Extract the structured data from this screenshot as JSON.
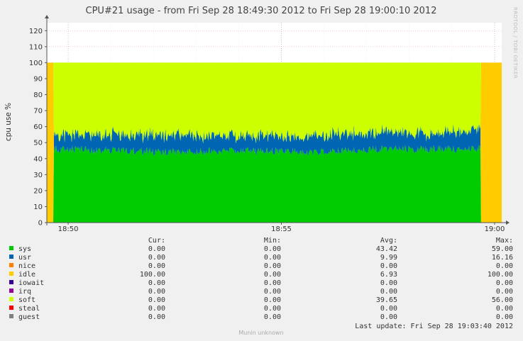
{
  "chart_data": {
    "type": "area",
    "title": "CPU#21 usage - from Fri Sep 28 18:49:30 2012 to Fri Sep 28 19:00:10 2012",
    "ylabel": "cpu use %",
    "side_text": "RRDTOOL / TOBI OETIKER",
    "ylim": [
      0,
      125
    ],
    "yticks": [
      0,
      10,
      20,
      30,
      40,
      50,
      60,
      70,
      80,
      90,
      100,
      110,
      120
    ],
    "x_range": [
      "18:49:30",
      "19:00:10"
    ],
    "xticks": [
      {
        "label": "18:50",
        "time": "18:50:00"
      },
      {
        "label": "18:55",
        "time": "18:55:00"
      },
      {
        "label": "19:00",
        "time": "19:00:00"
      }
    ],
    "stacked": true,
    "series_note": "stack order bottom to top: sys, usr, idle (edges), soft",
    "approx_profile": [
      {
        "time": "18:49:30",
        "sys": 0,
        "usr": 0,
        "idle": 100,
        "soft": 0
      },
      {
        "time": "18:49:40",
        "sys": 46,
        "usr": 9,
        "idle": 0,
        "soft": 45
      },
      {
        "time": "18:51:00",
        "sys": 45,
        "usr": 10,
        "idle": 0,
        "soft": 45
      },
      {
        "time": "18:52:30",
        "sys": 44,
        "usr": 11,
        "idle": 0,
        "soft": 45
      },
      {
        "time": "18:54:00",
        "sys": 45,
        "usr": 9,
        "idle": 0,
        "soft": 46
      },
      {
        "time": "18:55:30",
        "sys": 44,
        "usr": 10,
        "idle": 0,
        "soft": 46
      },
      {
        "time": "18:57:00",
        "sys": 46,
        "usr": 11,
        "idle": 0,
        "soft": 43
      },
      {
        "time": "18:58:30",
        "sys": 46,
        "usr": 10,
        "idle": 0,
        "soft": 44
      },
      {
        "time": "18:59:40",
        "sys": 46,
        "usr": 12,
        "idle": 0,
        "soft": 42
      },
      {
        "time": "18:59:50",
        "sys": 0,
        "usr": 0,
        "idle": 100,
        "soft": 0
      },
      {
        "time": "19:00:10",
        "sys": 0,
        "usr": 0,
        "idle": 100,
        "soft": 0
      }
    ],
    "legend": {
      "headers": {
        "cur": "Cur:",
        "min": "Min:",
        "avg": "Avg:",
        "max": "Max:"
      },
      "rows": [
        {
          "name": "sys",
          "color": "#00cc00",
          "cur": "0.00",
          "min": "0.00",
          "avg": "43.42",
          "max": "59.00"
        },
        {
          "name": "usr",
          "color": "#0066b3",
          "cur": "0.00",
          "min": "0.00",
          "avg": "9.99",
          "max": "16.16"
        },
        {
          "name": "nice",
          "color": "#ff8000",
          "cur": "0.00",
          "min": "0.00",
          "avg": "0.00",
          "max": "0.00"
        },
        {
          "name": "idle",
          "color": "#ffcc00",
          "cur": "100.00",
          "min": "0.00",
          "avg": "6.93",
          "max": "100.00"
        },
        {
          "name": "iowait",
          "color": "#330099",
          "cur": "0.00",
          "min": "0.00",
          "avg": "0.00",
          "max": "0.00"
        },
        {
          "name": "irq",
          "color": "#990099",
          "cur": "0.00",
          "min": "0.00",
          "avg": "0.00",
          "max": "0.00"
        },
        {
          "name": "soft",
          "color": "#ccff00",
          "cur": "0.00",
          "min": "0.00",
          "avg": "39.65",
          "max": "56.00"
        },
        {
          "name": "steal",
          "color": "#ff0000",
          "cur": "0.00",
          "min": "0.00",
          "avg": "0.00",
          "max": "0.00"
        },
        {
          "name": "guest",
          "color": "#808080",
          "cur": "0.00",
          "min": "0.00",
          "avg": "0.00",
          "max": "0.00"
        }
      ]
    }
  },
  "footer": {
    "last_update": "Last update: Fri Sep 28 19:03:40 2012",
    "munin": "Munin unknown"
  }
}
